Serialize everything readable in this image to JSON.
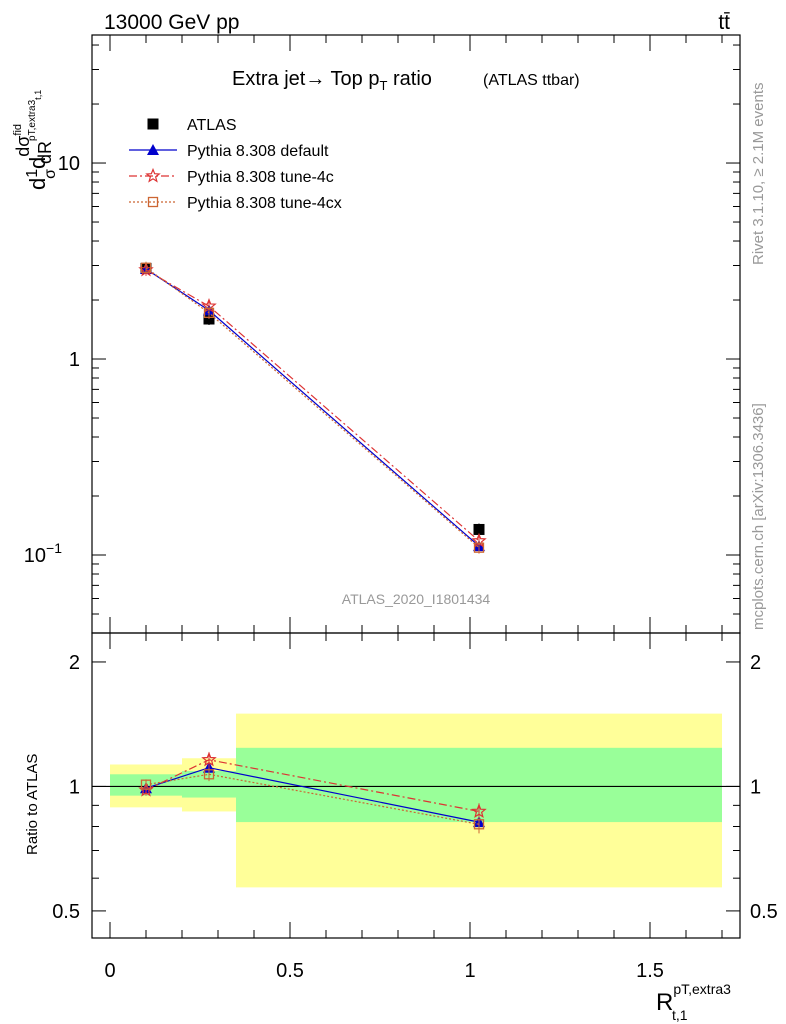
{
  "header": {
    "energy_label": "13000 GeV pp",
    "process_label": "tt̄"
  },
  "side_labels": {
    "rivet": "Rivet 3.1.10, ≥ 2.1M events",
    "mcplots": "mcplots.cern.ch [arXiv:1306.3436]"
  },
  "main_plot": {
    "title": "Extra jet→ Top p",
    "title_sub": "T",
    "title_tail": " ratio",
    "title_small": "(ATLAS ttbar)",
    "analysis_id": "ATLAS_2020_I1801434",
    "ylabel": "d(1/σ)dσ^fid/dR^pT,extra3 t,1",
    "y_ticks": [
      {
        "value": 0.1,
        "label": "10",
        "exp": "−1"
      },
      {
        "value": 1,
        "label": "1",
        "exp": ""
      },
      {
        "value": 10,
        "label": "10",
        "exp": ""
      }
    ]
  },
  "ratio_plot": {
    "ylabel": "Ratio to ATLAS",
    "y_ticks": [
      "0.5",
      "1",
      "2"
    ]
  },
  "x_axis": {
    "label": "R",
    "label_sup": "pT,extra3",
    "label_sub": "t,1",
    "ticks": [
      "0",
      "0.5",
      "1",
      "1.5"
    ]
  },
  "legend": [
    {
      "name": "ATLAS",
      "color": "#000000"
    },
    {
      "name": "Pythia 8.308 default",
      "color": "#0000cc"
    },
    {
      "name": "Pythia 8.308 tune-4c",
      "color": "#dd3333"
    },
    {
      "name": "Pythia 8.308 tune-4cx",
      "color": "#cc6633"
    }
  ],
  "chart_data": [
    {
      "type": "scatter",
      "scale": "log",
      "xlim": [
        -0.05,
        1.75
      ],
      "ylim": [
        0.04,
        45
      ],
      "x_bins": [
        [
          0.0,
          0.2
        ],
        [
          0.2,
          0.35
        ],
        [
          0.35,
          1.7
        ]
      ],
      "x": [
        0.1,
        0.275,
        1.025
      ],
      "series": [
        {
          "name": "ATLAS",
          "values": [
            2.9,
            1.6,
            0.135
          ],
          "marker": "square",
          "color": "#000000"
        },
        {
          "name": "Pythia 8.308 default",
          "values": [
            2.88,
            1.77,
            0.111
          ],
          "marker": "triangle",
          "color": "#0000cc",
          "line": "solid"
        },
        {
          "name": "Pythia 8.308 tune-4c",
          "values": [
            2.85,
            1.86,
            0.118
          ],
          "marker": "star",
          "color": "#dd3333",
          "line": "dashdot"
        },
        {
          "name": "Pythia 8.308 tune-4cx",
          "values": [
            2.92,
            1.72,
            0.109
          ],
          "marker": "open-square",
          "color": "#cc6633",
          "line": "dotted"
        }
      ]
    },
    {
      "type": "scatter",
      "scale": "log",
      "ylim": [
        0.43,
        2.35
      ],
      "x": [
        0.1,
        0.275,
        1.025
      ],
      "bands": {
        "bins": [
          [
            0.0,
            0.2
          ],
          [
            0.2,
            0.35
          ],
          [
            0.35,
            1.7
          ]
        ],
        "inner": [
          [
            0.95,
            1.07
          ],
          [
            0.94,
            1.09
          ],
          [
            0.82,
            1.24
          ]
        ],
        "outer": [
          [
            0.89,
            1.13
          ],
          [
            0.87,
            1.17
          ],
          [
            0.57,
            1.5
          ]
        ]
      },
      "series": [
        {
          "name": "Pythia 8.308 default",
          "values": [
            0.99,
            1.11,
            0.82
          ],
          "err": [
            0.03,
            0.05,
            0.04
          ]
        },
        {
          "name": "Pythia 8.308 tune-4c",
          "values": [
            0.98,
            1.16,
            0.87
          ],
          "err": [
            0.03,
            0.05,
            0.04
          ]
        },
        {
          "name": "Pythia 8.308 tune-4cx",
          "values": [
            1.01,
            1.07,
            0.81
          ],
          "err": [
            0.03,
            0.04,
            0.04
          ]
        }
      ]
    }
  ]
}
